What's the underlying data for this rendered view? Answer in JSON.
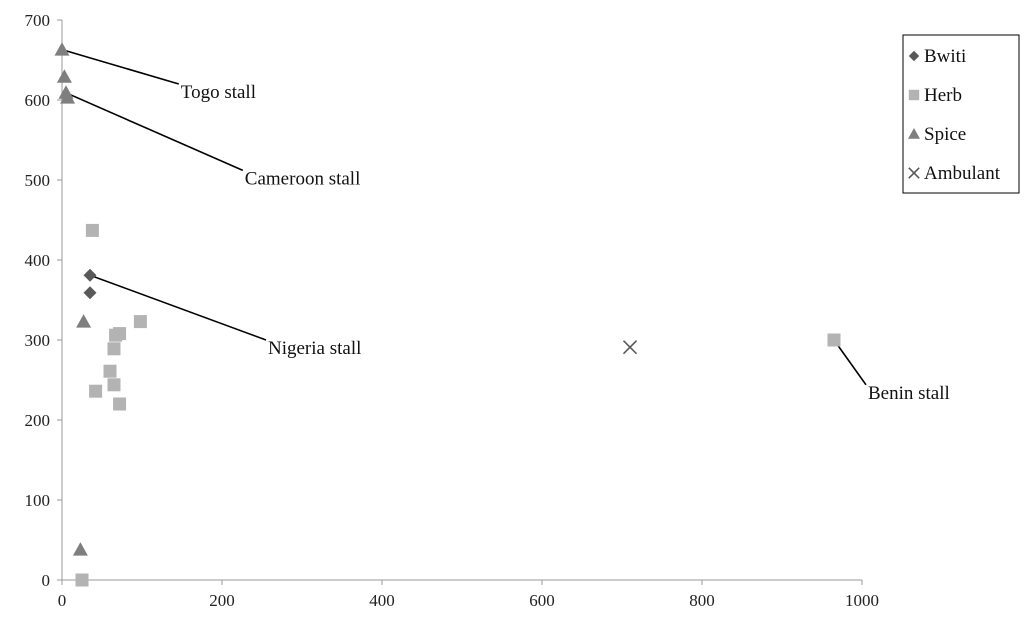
{
  "chart_data": {
    "type": "scatter",
    "xlim": [
      0,
      1000
    ],
    "ylim": [
      0,
      700
    ],
    "x_ticks": [
      0,
      200,
      400,
      600,
      800,
      1000
    ],
    "y_ticks": [
      0,
      100,
      200,
      300,
      400,
      500,
      600,
      700
    ],
    "grid": false,
    "legend_position": "top-right",
    "series": [
      {
        "name": "Bwiti",
        "marker": "diamond",
        "color": "#595959",
        "points": [
          [
            35,
            381
          ],
          [
            35,
            359
          ]
        ]
      },
      {
        "name": "Herb",
        "marker": "square",
        "color": "#b3b3b3",
        "points": [
          [
            38,
            437
          ],
          [
            42,
            236
          ],
          [
            60,
            261
          ],
          [
            65,
            289
          ],
          [
            67,
            306
          ],
          [
            65,
            244
          ],
          [
            72,
            308
          ],
          [
            72,
            220
          ],
          [
            98,
            323
          ],
          [
            25,
            0
          ],
          [
            965,
            300
          ]
        ]
      },
      {
        "name": "Spice",
        "marker": "triangle",
        "color": "#7f7f7f",
        "points": [
          [
            0,
            663
          ],
          [
            3,
            629
          ],
          [
            5,
            609
          ],
          [
            7,
            603
          ],
          [
            27,
            323
          ],
          [
            23,
            38
          ]
        ]
      },
      {
        "name": "Ambulant",
        "marker": "x",
        "color": "#595959",
        "points": [
          [
            710,
            291
          ]
        ]
      }
    ],
    "annotations": [
      {
        "text": "Togo stall",
        "point": [
          0,
          663
        ],
        "label_at": [
          146,
          620
        ]
      },
      {
        "text": "Cameroon stall",
        "point": [
          5,
          609
        ],
        "label_at": [
          226,
          512
        ]
      },
      {
        "text": "Nigeria stall",
        "point": [
          35,
          381
        ],
        "label_at": [
          255,
          300
        ]
      },
      {
        "text": "Benin stall",
        "point": [
          965,
          300
        ],
        "label_at": [
          1005,
          244
        ]
      }
    ]
  }
}
